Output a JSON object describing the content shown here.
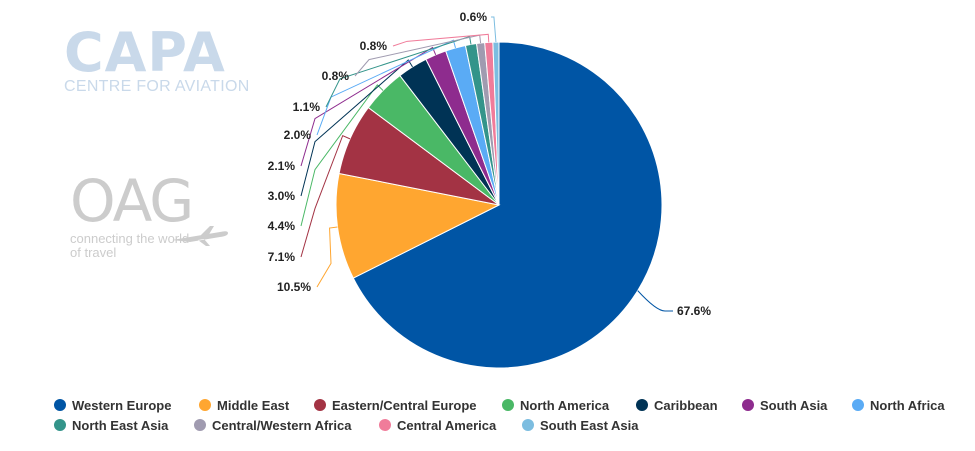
{
  "logos": {
    "capa_word": "CAPA",
    "capa_sub": "CENTRE FOR AVIATION",
    "oag_word": "OAG",
    "oag_sub": "connecting the world of travel"
  },
  "chart_data": {
    "type": "pie",
    "title": "",
    "legend_placement": "bottom",
    "series": [
      {
        "name": "Western Europe",
        "value": 67.6,
        "label": "67.6%",
        "color": "#0055a5"
      },
      {
        "name": "Middle East",
        "value": 10.5,
        "label": "10.5%",
        "color": "#ffa630"
      },
      {
        "name": "Eastern/Central Europe",
        "value": 7.1,
        "label": "7.1%",
        "color": "#a33344"
      },
      {
        "name": "North America",
        "value": 4.4,
        "label": "4.4%",
        "color": "#4ab866"
      },
      {
        "name": "Caribbean",
        "value": 3.0,
        "label": "3.0%",
        "color": "#003355"
      },
      {
        "name": "South Asia",
        "value": 2.1,
        "label": "2.1%",
        "color": "#8e2c8e"
      },
      {
        "name": "North Africa",
        "value": 2.0,
        "label": "2.0%",
        "color": "#5aabf5"
      },
      {
        "name": "North East Asia",
        "value": 1.1,
        "label": "1.1%",
        "color": "#33948a"
      },
      {
        "name": "Central/Western Africa",
        "value": 0.8,
        "label": "0.8%",
        "color": "#a09bb0"
      },
      {
        "name": "Central America",
        "value": 0.8,
        "label": "0.8%",
        "color": "#f07c9a"
      },
      {
        "name": "South East Asia",
        "value": 0.6,
        "label": "0.6%",
        "color": "#7cbde0"
      }
    ]
  }
}
